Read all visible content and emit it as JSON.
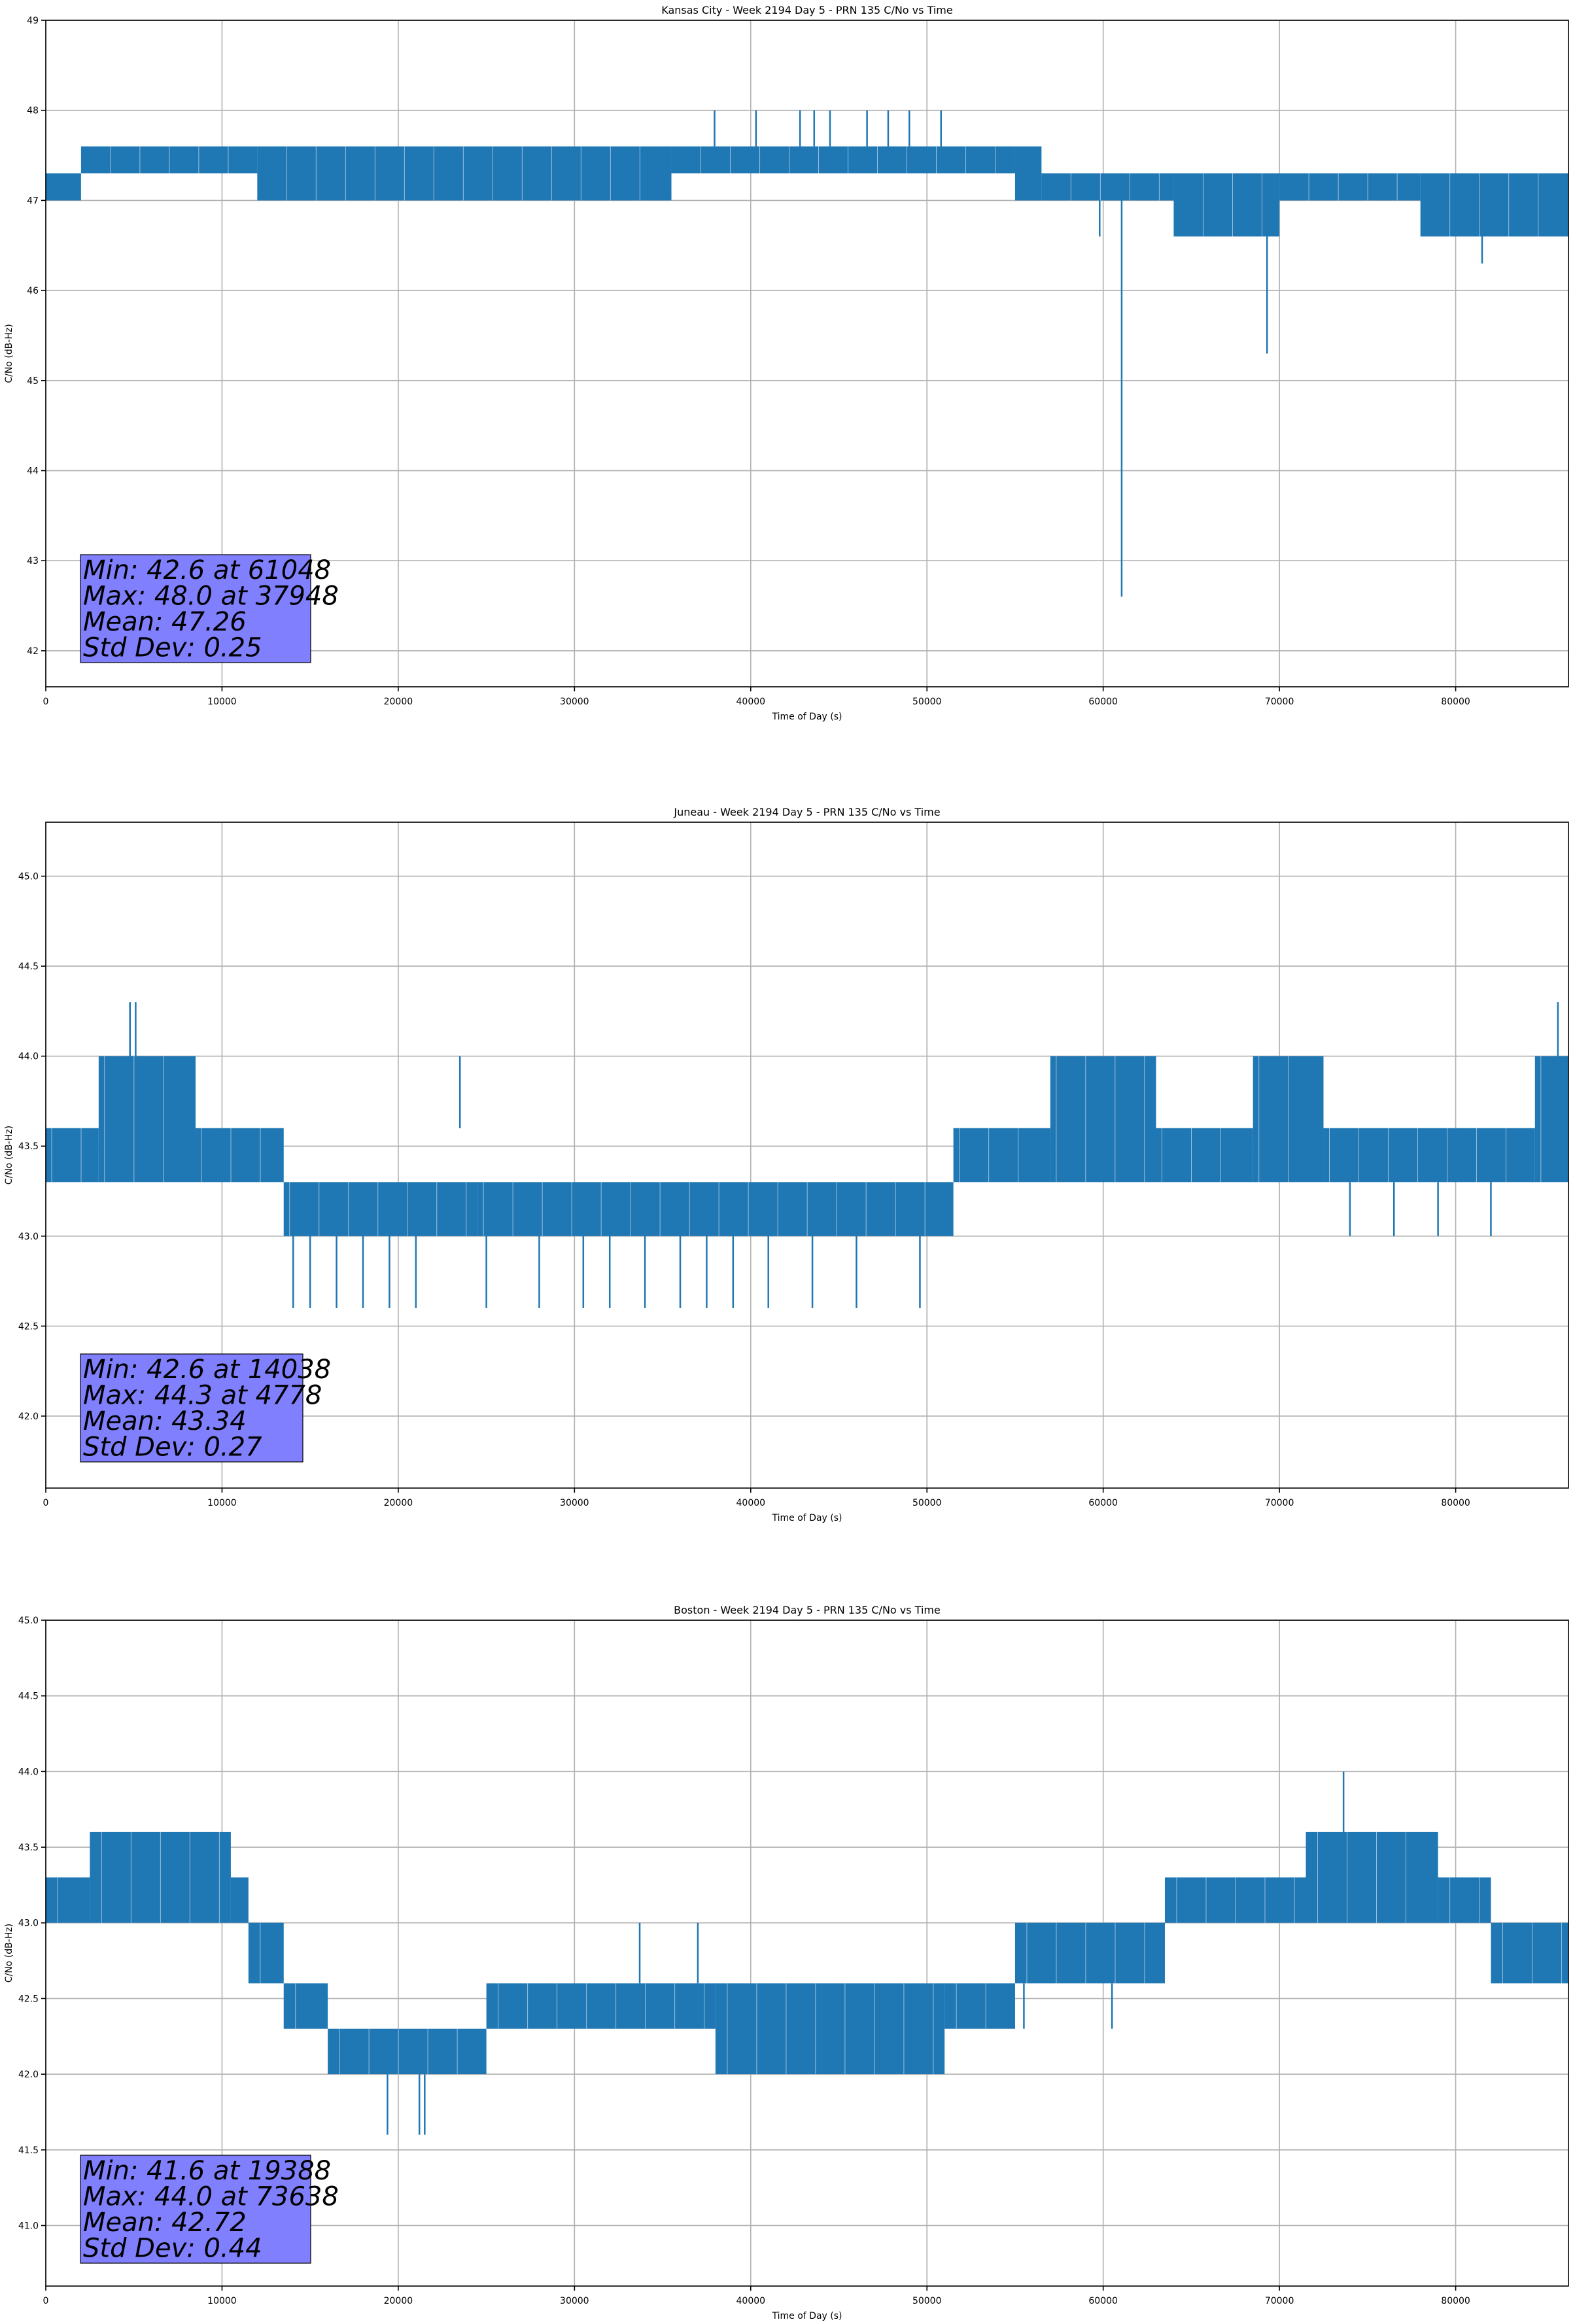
{
  "chart_data": [
    {
      "type": "line",
      "title": "Kansas City - Week 2194 Day 5 - PRN 135 C/No vs Time",
      "xlabel": "Time of Day (s)",
      "ylabel": "C/No (dB-Hz)",
      "xlim": [
        0,
        86400
      ],
      "ylim": [
        41.6,
        49.0
      ],
      "xticks": [
        0,
        10000,
        20000,
        30000,
        40000,
        50000,
        60000,
        70000,
        80000
      ],
      "yticks": [
        42,
        43,
        44,
        45,
        46,
        47,
        48,
        49
      ],
      "ytick_labels": [
        "42",
        "43",
        "44",
        "45",
        "46",
        "47",
        "48",
        "49"
      ],
      "grid": true,
      "line_color": "#1f77b4",
      "series": [
        {
          "bands": [
            {
              "x": [
                0,
                2000
              ],
              "lo": 47.0,
              "hi": 47.3
            },
            {
              "x": [
                2000,
                12000
              ],
              "lo": 47.3,
              "hi": 47.6
            },
            {
              "x": [
                12000,
                35500
              ],
              "lo": 47.0,
              "hi": 47.6
            },
            {
              "x": [
                35500,
                55000
              ],
              "lo": 47.3,
              "hi": 47.6
            },
            {
              "x": [
                55000,
                56500
              ],
              "lo": 47.0,
              "hi": 47.6
            },
            {
              "x": [
                56500,
                64000
              ],
              "lo": 47.0,
              "hi": 47.3
            },
            {
              "x": [
                64000,
                70000
              ],
              "lo": 46.6,
              "hi": 47.3
            },
            {
              "x": [
                70000,
                78000
              ],
              "lo": 47.0,
              "hi": 47.3
            },
            {
              "x": [
                78000,
                86400
              ],
              "lo": 46.6,
              "hi": 47.3
            }
          ],
          "spikes": [
            {
              "x": 61048,
              "lo": 42.6,
              "hi": 47.3
            },
            {
              "x": 69300,
              "lo": 45.3,
              "hi": 47.0
            },
            {
              "x": 81500,
              "lo": 46.3,
              "hi": 46.7
            },
            {
              "x": 37948,
              "lo": 47.6,
              "hi": 48.0
            },
            {
              "x": 40300,
              "lo": 47.6,
              "hi": 48.0
            },
            {
              "x": 42800,
              "lo": 47.6,
              "hi": 48.0
            },
            {
              "x": 43600,
              "lo": 47.6,
              "hi": 48.0
            },
            {
              "x": 44500,
              "lo": 47.6,
              "hi": 48.0
            },
            {
              "x": 46600,
              "lo": 47.6,
              "hi": 48.0
            },
            {
              "x": 47800,
              "lo": 47.6,
              "hi": 48.0
            },
            {
              "x": 49000,
              "lo": 47.6,
              "hi": 48.0
            },
            {
              "x": 50800,
              "lo": 47.6,
              "hi": 48.0
            },
            {
              "x": 59800,
              "lo": 46.6,
              "hi": 47.0
            }
          ]
        }
      ],
      "stats": {
        "min": "Min: 42.6 at 61048",
        "max": "Max: 48.0 at 37948",
        "mean": "Mean: 47.26",
        "std": "Std Dev: 0.25"
      }
    },
    {
      "type": "line",
      "title": "Juneau - Week 2194 Day 5 - PRN 135 C/No vs Time",
      "xlabel": "Time of Day (s)",
      "ylabel": "C/No (dB-Hz)",
      "xlim": [
        0,
        86400
      ],
      "ylim": [
        41.6,
        45.3
      ],
      "xticks": [
        0,
        10000,
        20000,
        30000,
        40000,
        50000,
        60000,
        70000,
        80000
      ],
      "yticks": [
        42.0,
        42.5,
        43.0,
        43.5,
        44.0,
        44.5,
        45.0
      ],
      "ytick_labels": [
        "42.0",
        "42.5",
        "43.0",
        "43.5",
        "44.0",
        "44.5",
        "45.0"
      ],
      "grid": true,
      "line_color": "#1f77b4",
      "series": [
        {
          "bands": [
            {
              "x": [
                0,
                3000
              ],
              "lo": 43.3,
              "hi": 43.6
            },
            {
              "x": [
                3000,
                8500
              ],
              "lo": 43.3,
              "hi": 44.0
            },
            {
              "x": [
                8500,
                13500
              ],
              "lo": 43.3,
              "hi": 43.6
            },
            {
              "x": [
                13500,
                24500
              ],
              "lo": 43.0,
              "hi": 43.3
            },
            {
              "x": [
                24500,
                51500
              ],
              "lo": 43.0,
              "hi": 43.3
            },
            {
              "x": [
                51500,
                57000
              ],
              "lo": 43.3,
              "hi": 43.6
            },
            {
              "x": [
                57000,
                63000
              ],
              "lo": 43.3,
              "hi": 44.0
            },
            {
              "x": [
                63000,
                68500
              ],
              "lo": 43.3,
              "hi": 43.6
            },
            {
              "x": [
                68500,
                72500
              ],
              "lo": 43.3,
              "hi": 44.0
            },
            {
              "x": [
                72500,
                84500
              ],
              "lo": 43.3,
              "hi": 43.6
            },
            {
              "x": [
                84500,
                86400
              ],
              "lo": 43.3,
              "hi": 44.0
            }
          ],
          "spikes": [
            {
              "x": 4778,
              "lo": 44.0,
              "hi": 44.3
            },
            {
              "x": 5100,
              "lo": 44.0,
              "hi": 44.3
            },
            {
              "x": 85800,
              "lo": 44.0,
              "hi": 44.3
            },
            {
              "x": 23500,
              "lo": 43.6,
              "hi": 44.0
            },
            {
              "x": 14038,
              "lo": 42.6,
              "hi": 43.0
            },
            {
              "x": 15000,
              "lo": 42.6,
              "hi": 43.0
            },
            {
              "x": 16500,
              "lo": 42.6,
              "hi": 43.0
            },
            {
              "x": 18000,
              "lo": 42.6,
              "hi": 43.0
            },
            {
              "x": 19500,
              "lo": 42.6,
              "hi": 43.0
            },
            {
              "x": 21000,
              "lo": 42.6,
              "hi": 43.0
            },
            {
              "x": 25000,
              "lo": 42.6,
              "hi": 43.0
            },
            {
              "x": 28000,
              "lo": 42.6,
              "hi": 43.0
            },
            {
              "x": 30500,
              "lo": 42.6,
              "hi": 43.0
            },
            {
              "x": 32000,
              "lo": 42.6,
              "hi": 43.0
            },
            {
              "x": 34000,
              "lo": 42.6,
              "hi": 43.0
            },
            {
              "x": 36000,
              "lo": 42.6,
              "hi": 43.0
            },
            {
              "x": 37500,
              "lo": 42.6,
              "hi": 43.0
            },
            {
              "x": 39000,
              "lo": 42.6,
              "hi": 43.0
            },
            {
              "x": 41000,
              "lo": 42.6,
              "hi": 43.0
            },
            {
              "x": 43500,
              "lo": 42.6,
              "hi": 43.0
            },
            {
              "x": 46000,
              "lo": 42.6,
              "hi": 43.0
            },
            {
              "x": 49600,
              "lo": 42.6,
              "hi": 43.0
            },
            {
              "x": 74000,
              "lo": 43.0,
              "hi": 43.3
            },
            {
              "x": 76500,
              "lo": 43.0,
              "hi": 43.3
            },
            {
              "x": 79000,
              "lo": 43.0,
              "hi": 43.3
            },
            {
              "x": 82000,
              "lo": 43.0,
              "hi": 43.3
            }
          ]
        }
      ],
      "stats": {
        "min": "Min: 42.6 at 14038",
        "max": "Max: 44.3 at 4778",
        "mean": "Mean: 43.34",
        "std": "Std Dev: 0.27"
      }
    },
    {
      "type": "line",
      "title": "Boston - Week 2194 Day 5 - PRN 135 C/No vs Time",
      "xlabel": "Time of Day (s)",
      "ylabel": "C/No (dB-Hz)",
      "xlim": [
        0,
        86400
      ],
      "ylim": [
        40.6,
        45.0
      ],
      "xticks": [
        0,
        10000,
        20000,
        30000,
        40000,
        50000,
        60000,
        70000,
        80000
      ],
      "yticks": [
        41.0,
        41.5,
        42.0,
        42.5,
        43.0,
        43.5,
        44.0,
        44.5,
        45.0
      ],
      "ytick_labels": [
        "41.0",
        "41.5",
        "42.0",
        "42.5",
        "43.0",
        "43.5",
        "44.0",
        "44.5",
        "45.0"
      ],
      "grid": true,
      "line_color": "#1f77b4",
      "series": [
        {
          "bands": [
            {
              "x": [
                0,
                2500
              ],
              "lo": 43.0,
              "hi": 43.3
            },
            {
              "x": [
                2500,
                10500
              ],
              "lo": 43.0,
              "hi": 43.6
            },
            {
              "x": [
                10500,
                11500
              ],
              "lo": 43.0,
              "hi": 43.3
            },
            {
              "x": [
                11500,
                13500
              ],
              "lo": 42.6,
              "hi": 43.0
            },
            {
              "x": [
                13500,
                16000
              ],
              "lo": 42.3,
              "hi": 42.6
            },
            {
              "x": [
                16000,
                25000
              ],
              "lo": 42.0,
              "hi": 42.3
            },
            {
              "x": [
                25000,
                38000
              ],
              "lo": 42.3,
              "hi": 42.6
            },
            {
              "x": [
                38000,
                51000
              ],
              "lo": 42.0,
              "hi": 42.6
            },
            {
              "x": [
                51000,
                55000
              ],
              "lo": 42.3,
              "hi": 42.6
            },
            {
              "x": [
                55000,
                63500
              ],
              "lo": 42.6,
              "hi": 43.0
            },
            {
              "x": [
                63500,
                71500
              ],
              "lo": 43.0,
              "hi": 43.3
            },
            {
              "x": [
                71500,
                79000
              ],
              "lo": 43.0,
              "hi": 43.6
            },
            {
              "x": [
                79000,
                82000
              ],
              "lo": 43.0,
              "hi": 43.3
            },
            {
              "x": [
                82000,
                86400
              ],
              "lo": 42.6,
              "hi": 43.0
            }
          ],
          "spikes": [
            {
              "x": 19388,
              "lo": 41.6,
              "hi": 42.0
            },
            {
              "x": 21200,
              "lo": 41.6,
              "hi": 42.0
            },
            {
              "x": 21500,
              "lo": 41.6,
              "hi": 42.0
            },
            {
              "x": 73638,
              "lo": 43.6,
              "hi": 44.0
            },
            {
              "x": 33700,
              "lo": 42.6,
              "hi": 43.0
            },
            {
              "x": 37000,
              "lo": 42.6,
              "hi": 43.0
            },
            {
              "x": 55500,
              "lo": 42.3,
              "hi": 42.6
            },
            {
              "x": 60500,
              "lo": 42.3,
              "hi": 42.6
            }
          ]
        }
      ],
      "stats": {
        "min": "Min: 41.6 at 19388",
        "max": "Max: 44.0 at 73638",
        "mean": "Mean: 42.72",
        "std": "Std Dev: 0.44"
      }
    }
  ]
}
